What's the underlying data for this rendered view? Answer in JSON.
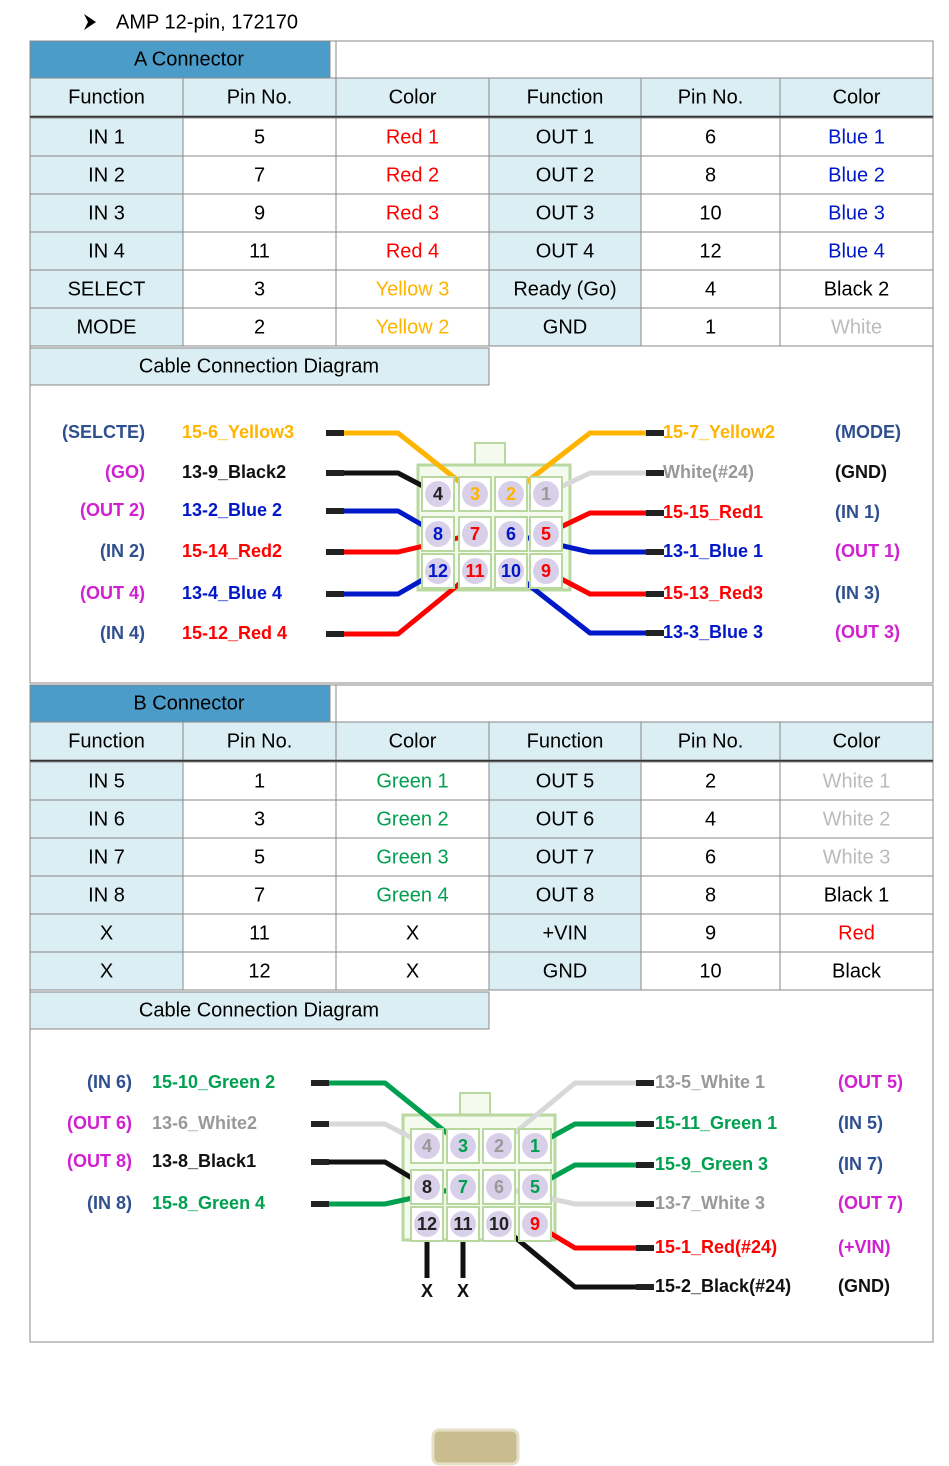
{
  "heading": "AMP 12-pin, 172170",
  "sections": [
    {
      "title": "A Connector",
      "headers": [
        "Function",
        "Pin No.",
        "Color",
        "Function",
        "Pin No.",
        "Color"
      ],
      "rows": [
        [
          "IN 1",
          "5",
          "Red 1",
          "OUT 1",
          "6",
          "Blue 1"
        ],
        [
          "IN 2",
          "7",
          "Red 2",
          "OUT 2",
          "8",
          "Blue 2"
        ],
        [
          "IN 3",
          "9",
          "Red 3",
          "OUT 3",
          "10",
          "Blue 3"
        ],
        [
          "IN 4",
          "11",
          "Red 4",
          "OUT 4",
          "12",
          "Blue 4"
        ],
        [
          "SELECT",
          "3",
          "Yellow 3",
          "Ready (Go)",
          "4",
          "Black 2"
        ],
        [
          "MODE",
          "2",
          "Yellow 2",
          "GND",
          "1",
          "White"
        ]
      ],
      "row_colors": [
        [
          "#ff0000",
          "#0018c8"
        ],
        [
          "#ff0000",
          "#0018c8"
        ],
        [
          "#ff0000",
          "#0018c8"
        ],
        [
          "#ff0000",
          "#0018c8"
        ],
        [
          "#ffb400",
          "#000000"
        ],
        [
          "#ffb400",
          "#bbbbbb"
        ]
      ],
      "diagram": {
        "title": "Cable Connection Diagram",
        "pins": [
          [
            "4",
            "3",
            "2",
            "1"
          ],
          [
            "8",
            "7",
            "6",
            "5"
          ],
          [
            "12",
            "11",
            "10",
            "9"
          ]
        ],
        "left": [
          {
            "func": "(SELCTE)",
            "func_color": "#2f4f8f",
            "label": "15-6_Yellow3",
            "color": "#ffb400",
            "pin": "3"
          },
          {
            "func": "(GO)",
            "func_color": "#d020d0",
            "label": "13-9_Black2",
            "color": "#111111",
            "pin": "4"
          },
          {
            "func": "(OUT 2)",
            "func_color": "#d020d0",
            "label": "13-2_Blue 2",
            "color": "#0018c8",
            "pin": "8"
          },
          {
            "func": "(IN 2)",
            "func_color": "#2f4f8f",
            "label": "15-14_Red2",
            "color": "#ff0000",
            "pin": "7"
          },
          {
            "func": "(OUT 4)",
            "func_color": "#d020d0",
            "label": "13-4_Blue 4",
            "color": "#0018c8",
            "pin": "12"
          },
          {
            "func": "(IN 4)",
            "func_color": "#2f4f8f",
            "label": "15-12_Red 4",
            "color": "#ff0000",
            "pin": "11"
          }
        ],
        "right": [
          {
            "func": "(MODE)",
            "func_color": "#2f4f8f",
            "label": "15-7_Yellow2",
            "color": "#ffb400",
            "pin": "2"
          },
          {
            "func": "(GND)",
            "func_color": "#111111",
            "label": "White(#24)",
            "color": "#d8d8d8",
            "pin": "1"
          },
          {
            "func": "(IN 1)",
            "func_color": "#2f4f8f",
            "label": "15-15_Red1",
            "color": "#ff0000",
            "pin": "5"
          },
          {
            "func": "(OUT 1)",
            "func_color": "#d020d0",
            "label": "13-1_Blue 1",
            "color": "#0018c8",
            "pin": "6"
          },
          {
            "func": "(IN 3)",
            "func_color": "#2f4f8f",
            "label": "15-13_Red3",
            "color": "#ff0000",
            "pin": "9"
          },
          {
            "func": "(OUT 3)",
            "func_color": "#d020d0",
            "label": "13-3_Blue 3",
            "color": "#0018c8",
            "pin": "10"
          }
        ],
        "bottom": []
      }
    },
    {
      "title": "B Connector",
      "headers": [
        "Function",
        "Pin No.",
        "Color",
        "Function",
        "Pin No.",
        "Color"
      ],
      "rows": [
        [
          "IN 5",
          "1",
          "Green 1",
          "OUT 5",
          "2",
          "White 1"
        ],
        [
          "IN 6",
          "3",
          "Green 2",
          "OUT 6",
          "4",
          "White 2"
        ],
        [
          "IN 7",
          "5",
          "Green 3",
          "OUT 7",
          "6",
          "White 3"
        ],
        [
          "IN 8",
          "7",
          "Green 4",
          "OUT 8",
          "8",
          "Black 1"
        ],
        [
          "X",
          "11",
          "X",
          "+VIN",
          "9",
          "Red"
        ],
        [
          "X",
          "12",
          "X",
          "GND",
          "10",
          "Black"
        ]
      ],
      "row_colors": [
        [
          "#00a050",
          "#bbbbbb"
        ],
        [
          "#00a050",
          "#bbbbbb"
        ],
        [
          "#00a050",
          "#bbbbbb"
        ],
        [
          "#00a050",
          "#000000"
        ],
        [
          "#000000",
          "#ff0000"
        ],
        [
          "#000000",
          "#000000"
        ]
      ],
      "diagram": {
        "title": "Cable Connection Diagram",
        "pins": [
          [
            "4",
            "3",
            "2",
            "1"
          ],
          [
            "8",
            "7",
            "6",
            "5"
          ],
          [
            "12",
            "11",
            "10",
            "9"
          ]
        ],
        "left": [
          {
            "func": "(IN 6)",
            "func_color": "#2f4f8f",
            "label": "15-10_Green 2",
            "color": "#00a050",
            "pin": "3"
          },
          {
            "func": "(OUT 6)",
            "func_color": "#d020d0",
            "label": "13-6_White2",
            "color": "#d8d8d8",
            "pin": "4"
          },
          {
            "func": "(OUT 8)",
            "func_color": "#d020d0",
            "label": "13-8_Black1",
            "color": "#111111",
            "pin": "8"
          },
          {
            "func": "(IN 8)",
            "func_color": "#2f4f8f",
            "label": "15-8_Green 4",
            "color": "#00a050",
            "pin": "7"
          }
        ],
        "right": [
          {
            "func": "(OUT 5)",
            "func_color": "#d020d0",
            "label": "13-5_White 1",
            "color": "#d8d8d8",
            "pin": "2"
          },
          {
            "func": "(IN 5)",
            "func_color": "#2f4f8f",
            "label": "15-11_Green 1",
            "color": "#00a050",
            "pin": "1"
          },
          {
            "func": "(IN 7)",
            "func_color": "#2f4f8f",
            "label": "15-9_Green 3",
            "color": "#00a050",
            "pin": "5"
          },
          {
            "func": "(OUT 7)",
            "func_color": "#d020d0",
            "label": "13-7_White 3",
            "color": "#d8d8d8",
            "pin": "6"
          },
          {
            "func": "(+VIN)",
            "func_color": "#d020d0",
            "label": "15-1_Red(#24)",
            "color": "#ff0000",
            "pin": "9"
          },
          {
            "func": "(GND)",
            "func_color": "#111111",
            "label": "15-2_Black(#24)",
            "color": "#111111",
            "pin": "10"
          }
        ],
        "bottom": [
          {
            "label": "X",
            "color": "#111111",
            "pin": "12"
          },
          {
            "label": "X",
            "color": "#111111",
            "pin": "11"
          }
        ]
      }
    }
  ]
}
